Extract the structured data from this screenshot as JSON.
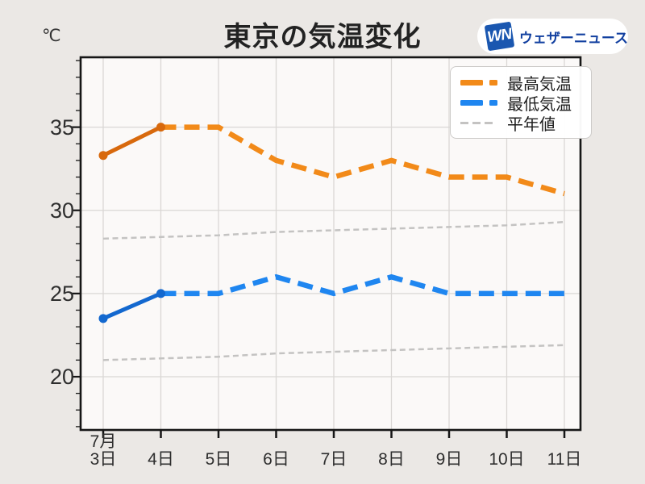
{
  "page": {
    "background": "#ebe8e5"
  },
  "header": {
    "unit_label": "℃",
    "title": "東京の気温変化",
    "logo": {
      "badge_text": "WN",
      "brand_text": "ウェザーニュース",
      "badge_color": "#1a57b0",
      "text_color": "#1240a0"
    }
  },
  "chart_data": {
    "type": "line",
    "title": "東京の気温変化",
    "y_unit": "℃",
    "x_tick_labels": [
      {
        "line1": "7月",
        "line2": "3日"
      },
      {
        "line1": "",
        "line2": "4日"
      },
      {
        "line1": "",
        "line2": "5日"
      },
      {
        "line1": "",
        "line2": "6日"
      },
      {
        "line1": "",
        "line2": "7日"
      },
      {
        "line1": "",
        "line2": "8日"
      },
      {
        "line1": "",
        "line2": "9日"
      },
      {
        "line1": "",
        "line2": "10日"
      },
      {
        "line1": "",
        "line2": "11日"
      }
    ],
    "y_ticks": [
      20,
      25,
      30,
      35
    ],
    "y_minor_tick_step": 1,
    "ylim": [
      16.8,
      39.2
    ],
    "grid": true,
    "legend_position": "top-right",
    "series": [
      {
        "id": "max-temp",
        "legend_label": "最高気温",
        "values": [
          33.3,
          35,
          35,
          33,
          32,
          33,
          32,
          32,
          31
        ],
        "observed_through_index": 1,
        "marker_indices": [
          0,
          1
        ],
        "color_observed": "#d8690d",
        "color_forecast": "#f28a19",
        "line": "thick-dashed"
      },
      {
        "id": "min-temp",
        "legend_label": "最低気温",
        "values": [
          23.5,
          25,
          25,
          26,
          25,
          26,
          25,
          25,
          25
        ],
        "observed_through_index": 1,
        "marker_indices": [
          0,
          1
        ],
        "color_observed": "#1368cf",
        "color_forecast": "#1f86f0",
        "line": "thick-dashed"
      },
      {
        "id": "normal-high",
        "legend_label": "平年値",
        "values": [
          28.3,
          28.4,
          28.5,
          28.7,
          28.8,
          28.9,
          29.0,
          29.1,
          29.3
        ],
        "color": "#c4c3c2",
        "line": "thin-dashed"
      },
      {
        "id": "normal-low",
        "legend_label": "平年値",
        "values": [
          21.0,
          21.1,
          21.2,
          21.4,
          21.5,
          21.6,
          21.7,
          21.8,
          21.9
        ],
        "color": "#c4c3c2",
        "line": "thin-dashed"
      }
    ],
    "legend": [
      {
        "label": "最高気温",
        "color": "#f28a19",
        "style": "thick-dash"
      },
      {
        "label": "最低気温",
        "color": "#1f86f0",
        "style": "thick-dash"
      },
      {
        "label": "平年値",
        "color": "#c4c3c2",
        "style": "thin-dash"
      }
    ]
  }
}
